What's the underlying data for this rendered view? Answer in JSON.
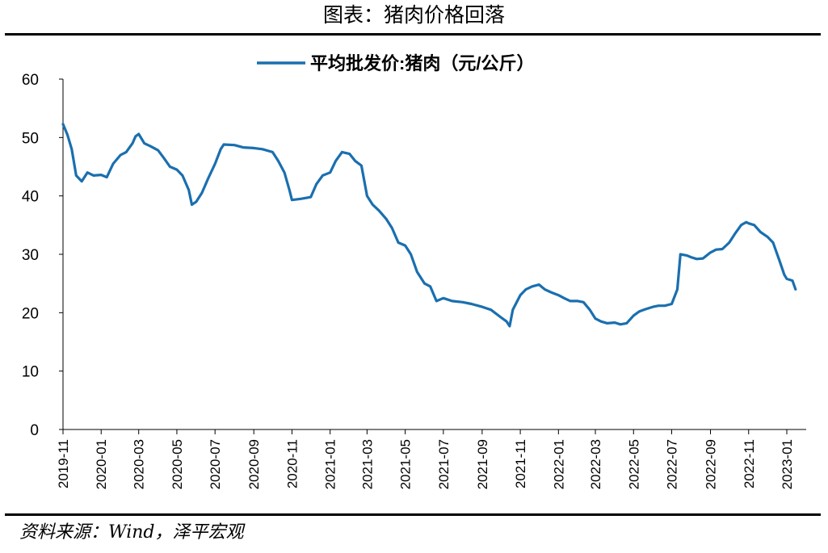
{
  "figure_title": "图表：猪肉价格回落",
  "source": "资料来源：Wind，泽平宏观",
  "chart_data": {
    "type": "line",
    "title": "",
    "xlabel": "",
    "ylabel": "",
    "ylim": [
      0,
      60
    ],
    "yticks": [
      0,
      10,
      20,
      30,
      40,
      50,
      60
    ],
    "xlim": [
      "2019-11",
      "2023-02"
    ],
    "xticks": [
      "2019-11",
      "2020-01",
      "2020-03",
      "2020-05",
      "2020-07",
      "2020-09",
      "2020-11",
      "2021-01",
      "2021-03",
      "2021-05",
      "2021-07",
      "2021-09",
      "2021-11",
      "2022-01",
      "2022-03",
      "2022-05",
      "2022-07",
      "2022-09",
      "2022-11",
      "2023-01"
    ],
    "grid": false,
    "legend_position": "top-center",
    "series": [
      {
        "name": "平均批发价:猪肉（元/公斤）",
        "color": "#1a6faf",
        "x": [
          "2019-11-01",
          "2019-11-08",
          "2019-11-15",
          "2019-11-22",
          "2019-12-01",
          "2019-12-10",
          "2019-12-20",
          "2020-01-01",
          "2020-01-10",
          "2020-01-20",
          "2020-02-01",
          "2020-02-10",
          "2020-02-20",
          "2020-02-25",
          "2020-03-01",
          "2020-03-10",
          "2020-03-20",
          "2020-04-01",
          "2020-04-10",
          "2020-04-20",
          "2020-05-01",
          "2020-05-10",
          "2020-05-20",
          "2020-05-25",
          "2020-06-01",
          "2020-06-10",
          "2020-06-20",
          "2020-07-01",
          "2020-07-10",
          "2020-07-15",
          "2020-08-01",
          "2020-08-15",
          "2020-09-01",
          "2020-09-15",
          "2020-10-01",
          "2020-10-10",
          "2020-10-20",
          "2020-10-28",
          "2020-11-01",
          "2020-11-15",
          "2020-12-01",
          "2020-12-10",
          "2020-12-20",
          "2021-01-01",
          "2021-01-10",
          "2021-01-20",
          "2021-02-01",
          "2021-02-10",
          "2021-02-20",
          "2021-03-01",
          "2021-03-10",
          "2021-03-20",
          "2021-04-01",
          "2021-04-10",
          "2021-04-20",
          "2021-05-01",
          "2021-05-10",
          "2021-05-20",
          "2021-06-01",
          "2021-06-10",
          "2021-06-20",
          "2021-07-01",
          "2021-07-15",
          "2021-08-01",
          "2021-08-15",
          "2021-09-01",
          "2021-09-15",
          "2021-10-01",
          "2021-10-10",
          "2021-10-15",
          "2021-10-20",
          "2021-11-01",
          "2021-11-10",
          "2021-11-20",
          "2021-12-01",
          "2021-12-10",
          "2021-12-20",
          "2022-01-01",
          "2022-01-10",
          "2022-01-20",
          "2022-02-01",
          "2022-02-10",
          "2022-02-20",
          "2022-03-01",
          "2022-03-10",
          "2022-03-20",
          "2022-04-01",
          "2022-04-10",
          "2022-04-20",
          "2022-05-01",
          "2022-05-10",
          "2022-05-20",
          "2022-06-01",
          "2022-06-10",
          "2022-06-20",
          "2022-07-01",
          "2022-07-10",
          "2022-07-15",
          "2022-07-25",
          "2022-08-01",
          "2022-08-10",
          "2022-08-20",
          "2022-09-01",
          "2022-09-10",
          "2022-09-20",
          "2022-10-01",
          "2022-10-10",
          "2022-10-20",
          "2022-10-28",
          "2022-11-01",
          "2022-11-10",
          "2022-11-20",
          "2022-12-01",
          "2022-12-10",
          "2022-12-20",
          "2022-12-28",
          "2023-01-01",
          "2023-01-10",
          "2023-01-15"
        ],
        "y": [
          52.3,
          50.5,
          48,
          43.5,
          42.5,
          44,
          43.5,
          43.6,
          43.2,
          45.5,
          47,
          47.5,
          49,
          50.2,
          50.6,
          49,
          48.5,
          47.8,
          46.5,
          45,
          44.5,
          43.5,
          41,
          38.5,
          39,
          40.5,
          43,
          45.5,
          48,
          48.8,
          48.7,
          48.3,
          48.2,
          48,
          47.5,
          46,
          44,
          41,
          39.3,
          39.5,
          39.8,
          42,
          43.5,
          44,
          46,
          47.5,
          47.2,
          46,
          45.2,
          40,
          38.5,
          37.5,
          36,
          34.5,
          32,
          31.5,
          30,
          27,
          25,
          24.5,
          22,
          22.5,
          22,
          21.8,
          21.5,
          21,
          20.5,
          19.2,
          18.5,
          17.7,
          20.5,
          23,
          24,
          24.5,
          24.8,
          24,
          23.5,
          23,
          22.5,
          22,
          22,
          21.8,
          20.5,
          19,
          18.5,
          18.2,
          18.3,
          18,
          18.2,
          19.5,
          20.2,
          20.6,
          21,
          21.2,
          21.2,
          21.5,
          24,
          30,
          29.8,
          29.5,
          29.2,
          29.3,
          30.3,
          30.8,
          30.9,
          32,
          33.5,
          35,
          35.5,
          35.3,
          35,
          33.8,
          33,
          32,
          29,
          26.5,
          25.8,
          25.5,
          24
        ]
      }
    ]
  }
}
